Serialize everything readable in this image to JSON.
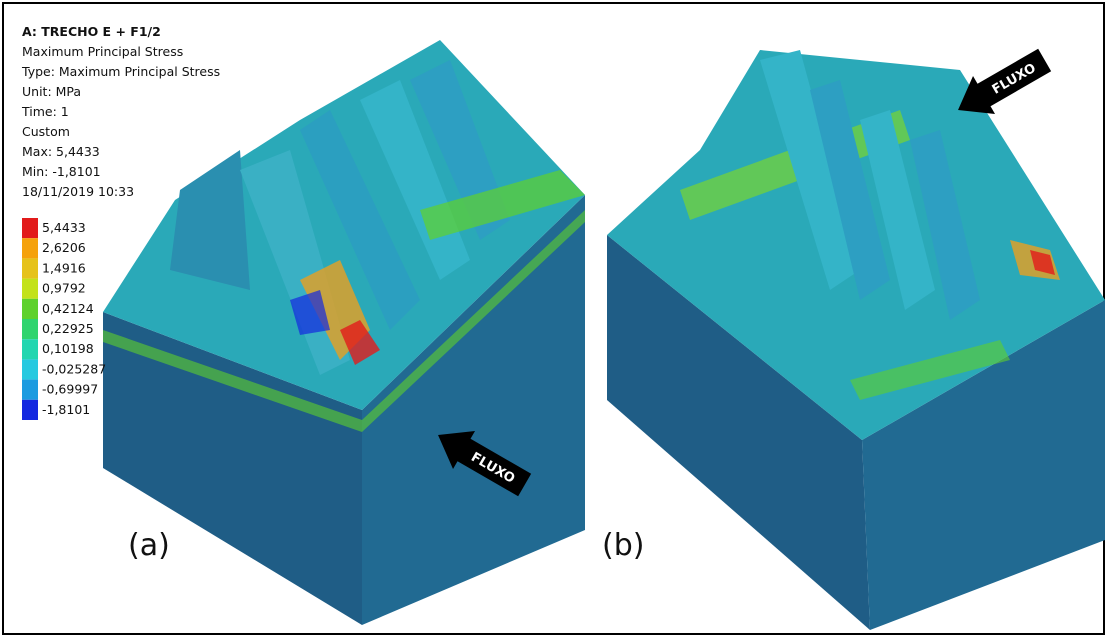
{
  "header": {
    "title": "A: TRECHO E + F1/2",
    "lines": [
      "Maximum Principal Stress",
      "Type: Maximum Principal Stress",
      "Unit: MPa",
      "Time: 1",
      "Custom",
      "Max: 5,4433",
      "Min: -1,8101",
      "18/11/2019 10:33"
    ]
  },
  "legend": {
    "items": [
      {
        "label": "5,4433",
        "color": "#e21b1b"
      },
      {
        "label": "2,6206",
        "color": "#f5a20c"
      },
      {
        "label": "1,4916",
        "color": "#e6c21a"
      },
      {
        "label": "0,9792",
        "color": "#c3e21a"
      },
      {
        "label": "0,42124",
        "color": "#5fd12c"
      },
      {
        "label": "0,22925",
        "color": "#2fd46e"
      },
      {
        "label": "0,10198",
        "color": "#22d6b0"
      },
      {
        "label": "-0,025287",
        "color": "#26c9e0"
      },
      {
        "label": "-0,69997",
        "color": "#1c9be0"
      },
      {
        "label": "-1,8101",
        "color": "#1428e0"
      }
    ]
  },
  "panels": [
    {
      "label": "(a)",
      "arrow": "FLUXO"
    },
    {
      "label": "(b)",
      "arrow": "FLUXO"
    }
  ]
}
